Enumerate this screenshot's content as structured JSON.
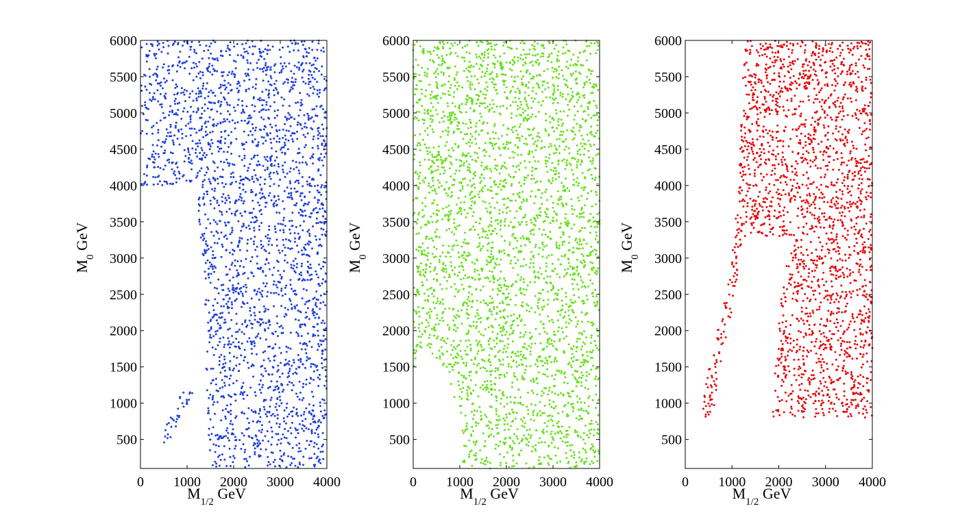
{
  "chart_data": [
    {
      "type": "scatter",
      "series": [
        {
          "color": "#1f3fd9",
          "density": 2600
        }
      ],
      "xlabel": {
        "main": "M",
        "sub": "1/2",
        "unit": "GeV"
      },
      "ylabel": {
        "main": "M",
        "sub": "0",
        "unit": "GeV"
      },
      "xlim": [
        0,
        4000
      ],
      "ylim": [
        100,
        6000
      ],
      "xticks": [
        0,
        1000,
        2000,
        3000,
        4000
      ],
      "yticks": [
        500,
        1000,
        1500,
        2000,
        2500,
        3000,
        3500,
        4000,
        4500,
        5000,
        5500,
        6000
      ],
      "excluded_region_boundary": [
        [
          0,
          4000
        ],
        [
          150,
          4500
        ],
        [
          450,
          4700
        ],
        [
          850,
          4550
        ],
        [
          1050,
          4300
        ],
        [
          1200,
          4000
        ],
        [
          1320,
          3000
        ],
        [
          1380,
          2400
        ],
        [
          1440,
          1800
        ],
        [
          1390,
          1400
        ],
        [
          1150,
          1150
        ],
        [
          900,
          950
        ],
        [
          700,
          750
        ],
        [
          500,
          500
        ],
        [
          1500,
          100
        ]
      ],
      "grid": false
    },
    {
      "type": "scatter",
      "series": [
        {
          "color": "#66e01a",
          "density": 3300
        }
      ],
      "xlabel": {
        "main": "M",
        "sub": "1/2",
        "unit": "GeV"
      },
      "ylabel": {
        "main": "M",
        "sub": "0",
        "unit": "GeV"
      },
      "xlim": [
        0,
        4000
      ],
      "ylim": [
        100,
        6000
      ],
      "xticks": [
        0,
        1000,
        2000,
        3000,
        4000
      ],
      "yticks": [
        500,
        1000,
        1500,
        2000,
        2500,
        3000,
        3500,
        4000,
        4500,
        5000,
        5500,
        6000
      ],
      "excluded_region_boundary": [
        [
          0,
          1500
        ],
        [
          300,
          1700
        ],
        [
          700,
          1450
        ],
        [
          1000,
          800
        ],
        [
          1100,
          300
        ],
        [
          1000,
          100
        ]
      ],
      "grid": false
    },
    {
      "type": "scatter",
      "series": [
        {
          "color": "#e60a0a",
          "density": 2200
        }
      ],
      "xlabel": {
        "main": "M",
        "sub": "1/2",
        "unit": "GeV"
      },
      "ylabel": {
        "main": "M",
        "sub": "0",
        "unit": "GeV"
      },
      "xlim": [
        0,
        4000
      ],
      "ylim": [
        100,
        6000
      ],
      "xticks": [
        0,
        1000,
        2000,
        3000,
        4000
      ],
      "yticks": [
        500,
        1000,
        1500,
        2000,
        2500,
        3000,
        3500,
        4000,
        4500,
        5000,
        5500,
        6000
      ],
      "valid_region": {
        "left_boundary": [
          [
            300,
            800
          ],
          [
            500,
            1500
          ],
          [
            800,
            2300
          ],
          [
            1050,
            3300
          ],
          [
            1150,
            4300
          ],
          [
            1230,
            5500
          ],
          [
            1300,
            6000
          ]
        ],
        "inner_notch": [
          [
            2400,
            3300
          ],
          [
            2100,
            2800
          ],
          [
            2000,
            2100
          ],
          [
            1900,
            1300
          ],
          [
            1700,
            100
          ]
        ]
      },
      "grid": false
    }
  ]
}
